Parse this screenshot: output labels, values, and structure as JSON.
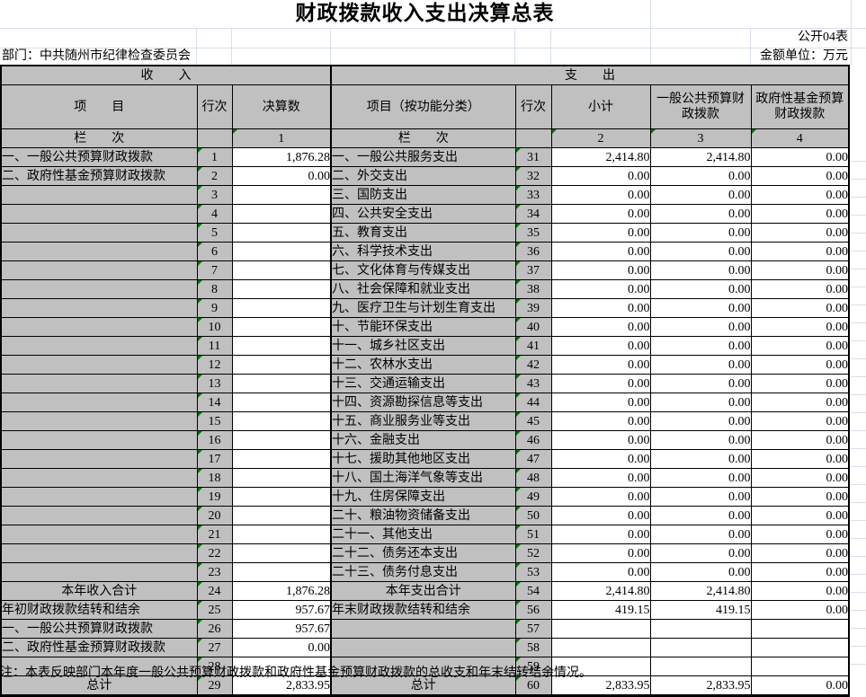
{
  "title": "财政拨款收入支出决算总表",
  "meta": {
    "sheet_code": "公开04表",
    "department": "部门：中共随州市纪律检查委员会",
    "unit": "金额单位：万元"
  },
  "table": {
    "section_income": "收　　入",
    "section_expense": "支　　出",
    "columns": {
      "item": "项　　目",
      "row_no": "行次",
      "final_amount": "决算数",
      "item_func": "项目（按功能分类）",
      "row_no2": "行次",
      "subtotal": "小计",
      "general_budget": "一般公共预算财政拨款",
      "gov_fund": "政府性基金预算财政拨款"
    },
    "lane_label": "栏　　次",
    "lane_indices": [
      "1",
      "2",
      "3",
      "4"
    ],
    "rows": [
      {
        "income_item": "一、一般公共预算财政拨款",
        "income_row": "1",
        "income_value": "1,876.28",
        "expense_item": "一、一般公共服务支出",
        "expense_row": "31",
        "subtotal": "2,414.80",
        "general": "2,414.80",
        "fund": "0.00",
        "emphasis": false
      },
      {
        "income_item": "二、政府性基金预算财政拨款",
        "income_row": "2",
        "income_value": "0.00",
        "expense_item": "二、外交支出",
        "expense_row": "32",
        "subtotal": "0.00",
        "general": "0.00",
        "fund": "0.00",
        "emphasis": false
      },
      {
        "income_item": "",
        "income_row": "3",
        "income_value": "",
        "expense_item": "三、国防支出",
        "expense_row": "33",
        "subtotal": "0.00",
        "general": "0.00",
        "fund": "0.00",
        "emphasis": false
      },
      {
        "income_item": "",
        "income_row": "4",
        "income_value": "",
        "expense_item": "四、公共安全支出",
        "expense_row": "34",
        "subtotal": "0.00",
        "general": "0.00",
        "fund": "0.00",
        "emphasis": false
      },
      {
        "income_item": "",
        "income_row": "5",
        "income_value": "",
        "expense_item": "五、教育支出",
        "expense_row": "35",
        "subtotal": "0.00",
        "general": "0.00",
        "fund": "0.00",
        "emphasis": false
      },
      {
        "income_item": "",
        "income_row": "6",
        "income_value": "",
        "expense_item": "六、科学技术支出",
        "expense_row": "36",
        "subtotal": "0.00",
        "general": "0.00",
        "fund": "0.00",
        "emphasis": false
      },
      {
        "income_item": "",
        "income_row": "7",
        "income_value": "",
        "expense_item": "七、文化体育与传媒支出",
        "expense_row": "37",
        "subtotal": "0.00",
        "general": "0.00",
        "fund": "0.00",
        "emphasis": false
      },
      {
        "income_item": "",
        "income_row": "8",
        "income_value": "",
        "expense_item": "八、社会保障和就业支出",
        "expense_row": "38",
        "subtotal": "0.00",
        "general": "0.00",
        "fund": "0.00",
        "emphasis": false
      },
      {
        "income_item": "",
        "income_row": "9",
        "income_value": "",
        "expense_item": "九、医疗卫生与计划生育支出",
        "expense_row": "39",
        "subtotal": "0.00",
        "general": "0.00",
        "fund": "0.00",
        "emphasis": false
      },
      {
        "income_item": "",
        "income_row": "10",
        "income_value": "",
        "expense_item": "十、节能环保支出",
        "expense_row": "40",
        "subtotal": "0.00",
        "general": "0.00",
        "fund": "0.00",
        "emphasis": false
      },
      {
        "income_item": "",
        "income_row": "11",
        "income_value": "",
        "expense_item": "十一、城乡社区支出",
        "expense_row": "41",
        "subtotal": "0.00",
        "general": "0.00",
        "fund": "0.00",
        "emphasis": false
      },
      {
        "income_item": "",
        "income_row": "12",
        "income_value": "",
        "expense_item": "十二、农林水支出",
        "expense_row": "42",
        "subtotal": "0.00",
        "general": "0.00",
        "fund": "0.00",
        "emphasis": false
      },
      {
        "income_item": "",
        "income_row": "13",
        "income_value": "",
        "expense_item": "十三、交通运输支出",
        "expense_row": "43",
        "subtotal": "0.00",
        "general": "0.00",
        "fund": "0.00",
        "emphasis": false
      },
      {
        "income_item": "",
        "income_row": "14",
        "income_value": "",
        "expense_item": "十四、资源勘探信息等支出",
        "expense_row": "44",
        "subtotal": "0.00",
        "general": "0.00",
        "fund": "0.00",
        "emphasis": false
      },
      {
        "income_item": "",
        "income_row": "15",
        "income_value": "",
        "expense_item": "十五、商业服务业等支出",
        "expense_row": "45",
        "subtotal": "0.00",
        "general": "0.00",
        "fund": "0.00",
        "emphasis": false
      },
      {
        "income_item": "",
        "income_row": "16",
        "income_value": "",
        "expense_item": "十六、金融支出",
        "expense_row": "46",
        "subtotal": "0.00",
        "general": "0.00",
        "fund": "0.00",
        "emphasis": false
      },
      {
        "income_item": "",
        "income_row": "17",
        "income_value": "",
        "expense_item": "十七、援助其他地区支出",
        "expense_row": "47",
        "subtotal": "0.00",
        "general": "0.00",
        "fund": "0.00",
        "emphasis": false
      },
      {
        "income_item": "",
        "income_row": "18",
        "income_value": "",
        "expense_item": "十八、国土海洋气象等支出",
        "expense_row": "48",
        "subtotal": "0.00",
        "general": "0.00",
        "fund": "0.00",
        "emphasis": false
      },
      {
        "income_item": "",
        "income_row": "19",
        "income_value": "",
        "expense_item": "十九、住房保障支出",
        "expense_row": "49",
        "subtotal": "0.00",
        "general": "0.00",
        "fund": "0.00",
        "emphasis": false
      },
      {
        "income_item": "",
        "income_row": "20",
        "income_value": "",
        "expense_item": "二十、粮油物资储备支出",
        "expense_row": "50",
        "subtotal": "0.00",
        "general": "0.00",
        "fund": "0.00",
        "emphasis": false
      },
      {
        "income_item": "",
        "income_row": "21",
        "income_value": "",
        "expense_item": "二十一、其他支出",
        "expense_row": "51",
        "subtotal": "0.00",
        "general": "0.00",
        "fund": "0.00",
        "emphasis": false
      },
      {
        "income_item": "",
        "income_row": "22",
        "income_value": "",
        "expense_item": "二十二、债务还本支出",
        "expense_row": "52",
        "subtotal": "0.00",
        "general": "0.00",
        "fund": "0.00",
        "emphasis": false
      },
      {
        "income_item": "",
        "income_row": "23",
        "income_value": "",
        "expense_item": "二十三、债务付息支出",
        "expense_row": "53",
        "subtotal": "0.00",
        "general": "0.00",
        "fund": "0.00",
        "emphasis": false
      },
      {
        "income_item": "本年收入合计",
        "income_row": "24",
        "income_value": "1,876.28",
        "expense_item": "本年支出合计",
        "expense_row": "54",
        "subtotal": "2,414.80",
        "general": "2,414.80",
        "fund": "0.00",
        "emphasis": true
      },
      {
        "income_item": "年初财政拨款结转和结余",
        "income_row": "25",
        "income_value": "957.67",
        "expense_item": "年末财政拨款结转和结余",
        "expense_row": "56",
        "subtotal": "419.15",
        "general": "419.15",
        "fund": "0.00",
        "emphasis": false
      },
      {
        "income_item": "一、一般公共预算财政拨款",
        "income_row": "26",
        "income_value": "957.67",
        "expense_item": "",
        "expense_row": "57",
        "subtotal": "",
        "general": "",
        "fund": "",
        "emphasis": false
      },
      {
        "income_item": "二、政府性基金预算财政拨款",
        "income_row": "27",
        "income_value": "0.00",
        "expense_item": "",
        "expense_row": "58",
        "subtotal": "",
        "general": "",
        "fund": "",
        "emphasis": false
      },
      {
        "income_item": "",
        "income_row": "28",
        "income_value": "",
        "expense_item": "",
        "expense_row": "59",
        "subtotal": "",
        "general": "",
        "fund": "",
        "emphasis": false
      },
      {
        "income_item": "总计",
        "income_row": "29",
        "income_value": "2,833.95",
        "expense_item": "总计",
        "expense_row": "60",
        "subtotal": "2,833.95",
        "general": "2,833.95",
        "fund": "0.00",
        "emphasis": true
      }
    ]
  },
  "note": "注：本表反映部门本年度一般公共预算财政拨款和政府性基金预算财政拨款的总收支和年末结转结余情况。"
}
